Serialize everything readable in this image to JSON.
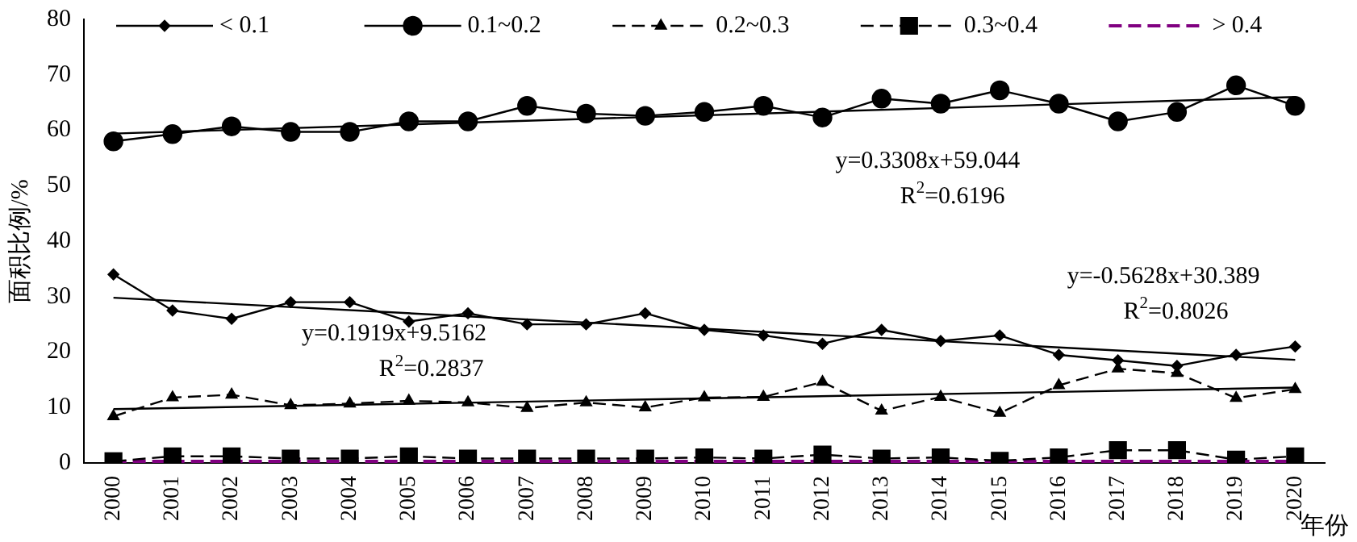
{
  "chart_data": {
    "type": "line",
    "xlabel": "年份",
    "ylabel": "面积比例/%",
    "categories": [
      "2000",
      "2001",
      "2002",
      "2003",
      "2004",
      "2005",
      "2006",
      "2007",
      "2008",
      "2009",
      "2010",
      "2011",
      "2012",
      "2013",
      "2014",
      "2015",
      "2016",
      "2017",
      "2018",
      "2019",
      "2020"
    ],
    "series": [
      {
        "name": "< 0.1",
        "color": "#000000",
        "marker": "diamond",
        "line_style": "solid",
        "values": [
          34,
          27.5,
          26,
          29,
          29,
          25.5,
          27,
          25,
          25,
          27,
          24,
          23,
          21.5,
          24,
          22,
          23,
          19.5,
          18.5,
          17.5,
          19.5,
          21
        ]
      },
      {
        "name": "0.1~0.2",
        "color": "#000000",
        "marker": "circle",
        "line_style": "solid",
        "values": [
          58,
          59.3,
          60.7,
          59.7,
          59.7,
          61.6,
          61.6,
          64.4,
          63,
          62.6,
          63.3,
          64.4,
          62.3,
          65.7,
          64.8,
          67.2,
          64.8,
          61.6,
          63.3,
          68.1,
          64.4
        ]
      },
      {
        "name": "0.2~0.3",
        "color": "#000000",
        "marker": "triangle",
        "line_style": "dashed",
        "values": [
          8.4,
          11.8,
          12.3,
          10.4,
          10.7,
          11.2,
          10.9,
          9.9,
          10.9,
          10,
          11.8,
          11.9,
          14.6,
          9.4,
          11.9,
          9,
          14,
          17,
          16.2,
          11.7,
          13.3
        ]
      },
      {
        "name": "0.3~0.4",
        "color": "#000000",
        "marker": "square",
        "line_style": "dashed",
        "values": [
          0.3,
          1.2,
          1.2,
          0.8,
          0.8,
          1.2,
          0.8,
          0.8,
          0.8,
          0.8,
          1,
          0.8,
          1.5,
          0.8,
          1,
          0.4,
          1,
          2.3,
          2.3,
          0.6,
          1.2
        ]
      },
      {
        "name": "> 0.4",
        "color": "#800080",
        "marker": "none",
        "line_style": "dashed",
        "values": [
          0.3,
          0.3,
          0.3,
          0.3,
          0.3,
          0.3,
          0.3,
          0.3,
          0.3,
          0.3,
          0.3,
          0.3,
          0.3,
          0.3,
          0.3,
          0.3,
          0.3,
          0.3,
          0.3,
          0.3,
          0.3
        ]
      },
      {
        "type": "line",
        "color": "#000000",
        "line_style": "solid",
        "values": [
          29.8,
          null,
          null,
          null,
          null,
          null,
          null,
          null,
          null,
          null,
          null,
          null,
          null,
          null,
          null,
          null,
          null,
          null,
          null,
          null,
          18.6
        ]
      },
      {
        "type": "line",
        "color": "#000000",
        "line_style": "solid",
        "values": [
          59.4,
          null,
          null,
          null,
          null,
          null,
          null,
          null,
          null,
          null,
          null,
          null,
          null,
          null,
          null,
          null,
          null,
          null,
          null,
          null,
          66.0
        ]
      },
      {
        "type": "line",
        "color": "#000000",
        "line_style": "solid",
        "values": [
          9.7,
          null,
          null,
          null,
          null,
          null,
          null,
          null,
          null,
          null,
          null,
          null,
          null,
          null,
          null,
          null,
          null,
          null,
          null,
          null,
          13.6
        ]
      }
    ],
    "annotations": [
      "y=0.3308x+59.044",
      "R$^{2}$=0.6196",
      "y=-0.5628x+30.389",
      "R$^{2}$=0.8026",
      "y=0.1919x+9.5162",
      "R$^{2}$=0.2837"
    ],
    "ylim": [
      0,
      80
    ],
    "yticks": [
      0,
      10,
      20,
      30,
      40,
      50,
      60,
      70,
      80
    ],
    "grid": false,
    "legend": "top"
  }
}
